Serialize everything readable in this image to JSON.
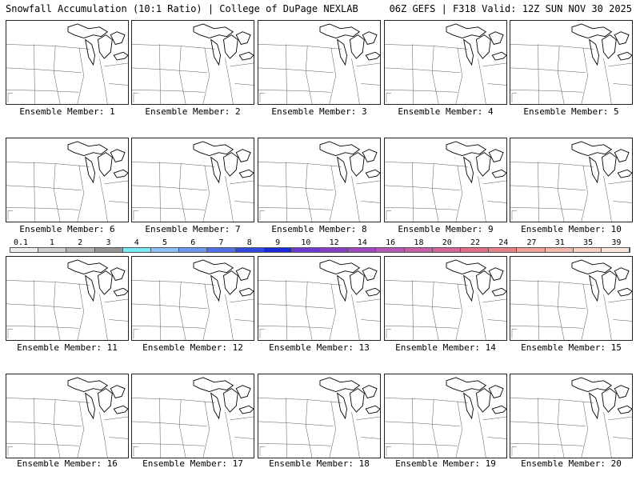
{
  "header": {
    "left": "Snowfall Accumulation (10:1 Ratio) | College of DuPage NEXLAB",
    "right": "06Z GEFS | F318 Valid: 12Z SUN NOV 30 2025"
  },
  "legend": {
    "ticks": [
      "0.1",
      "1",
      "2",
      "3",
      "4",
      "5",
      "6",
      "7",
      "8",
      "9",
      "10",
      "12",
      "14",
      "16",
      "18",
      "20",
      "22",
      "24",
      "27",
      "31",
      "35",
      "39"
    ],
    "colors": [
      "#ededed",
      "#d0d0d0",
      "#b2b2b2",
      "#939393",
      "#79eaf4",
      "#8ebef6",
      "#6e97f0",
      "#4f6fe8",
      "#3048e0",
      "#1a2ad8",
      "#6c3ad0",
      "#8540c6",
      "#9e4abd",
      "#b45ab6",
      "#c55fa8",
      "#d4669a",
      "#e06e8b",
      "#e8828a",
      "#eea297",
      "#f2b8ab",
      "#f6cfc1",
      "#fae6db"
    ]
  },
  "panels": [
    {
      "label": "Ensemble Member: 1"
    },
    {
      "label": "Ensemble Member: 2"
    },
    {
      "label": "Ensemble Member: 3"
    },
    {
      "label": "Ensemble Member: 4"
    },
    {
      "label": "Ensemble Member: 5"
    },
    {
      "label": "Ensemble Member: 6"
    },
    {
      "label": "Ensemble Member: 7"
    },
    {
      "label": "Ensemble Member: 8"
    },
    {
      "label": "Ensemble Member: 9"
    },
    {
      "label": "Ensemble Member: 10"
    },
    {
      "label": "Ensemble Member: 11"
    },
    {
      "label": "Ensemble Member: 12"
    },
    {
      "label": "Ensemble Member: 13"
    },
    {
      "label": "Ensemble Member: 14"
    },
    {
      "label": "Ensemble Member: 15"
    },
    {
      "label": "Ensemble Member: 16"
    },
    {
      "label": "Ensemble Member: 17"
    },
    {
      "label": "Ensemble Member: 18"
    },
    {
      "label": "Ensemble Member: 19"
    },
    {
      "label": "Ensemble Member: 20"
    }
  ]
}
